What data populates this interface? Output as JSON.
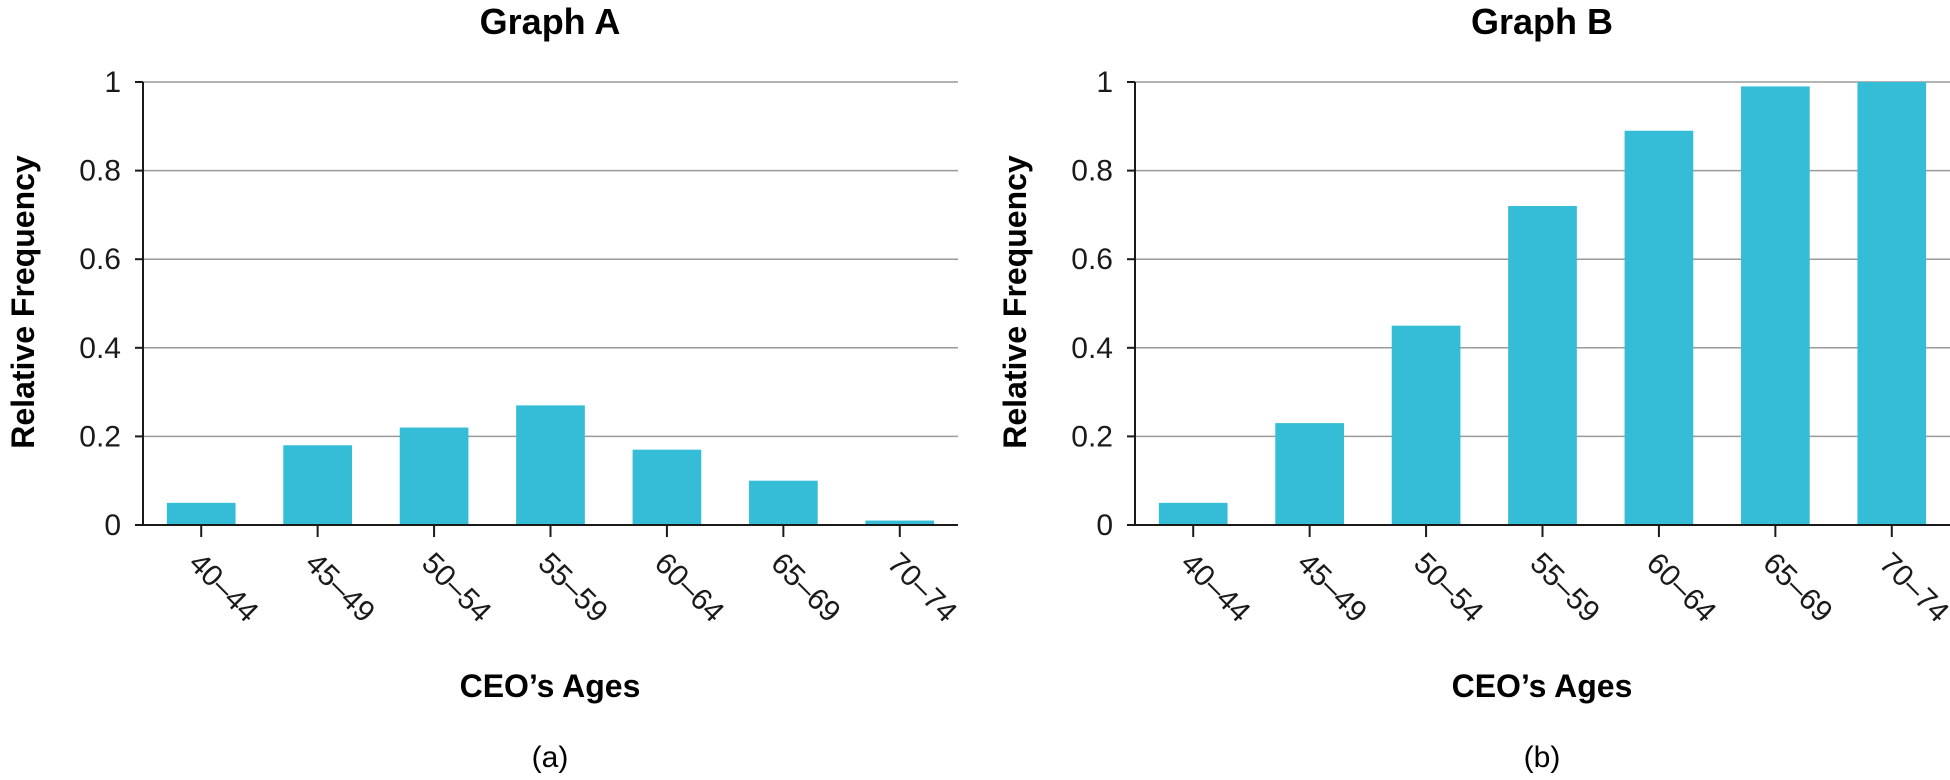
{
  "chart_data": [
    {
      "type": "bar",
      "title": "Graph A",
      "xlabel": "CEO’s Ages",
      "ylabel": "Relative Frequency",
      "caption": "(a)",
      "categories": [
        "40–44",
        "45–49",
        "50–54",
        "55–59",
        "60–64",
        "65–69",
        "70–74"
      ],
      "values": [
        0.05,
        0.18,
        0.22,
        0.27,
        0.17,
        0.1,
        0.01
      ],
      "ylim": [
        0,
        1
      ],
      "yticks": [
        "0",
        "0.2",
        "0.4",
        "0.6",
        "0.8",
        "1"
      ],
      "grid": true,
      "bar_color": "#35BCD6"
    },
    {
      "type": "bar",
      "title": "Graph B",
      "xlabel": "CEO’s Ages",
      "ylabel": "Relative Frequency",
      "caption": "(b)",
      "categories": [
        "40–44",
        "45–49",
        "50–54",
        "55–59",
        "60–64",
        "65–69",
        "70–74"
      ],
      "values": [
        0.05,
        0.23,
        0.45,
        0.72,
        0.89,
        0.99,
        1.0
      ],
      "ylim": [
        0,
        1
      ],
      "yticks": [
        "0",
        "0.2",
        "0.4",
        "0.6",
        "0.8",
        "1"
      ],
      "grid": true,
      "bar_color": "#35BCD6"
    }
  ]
}
